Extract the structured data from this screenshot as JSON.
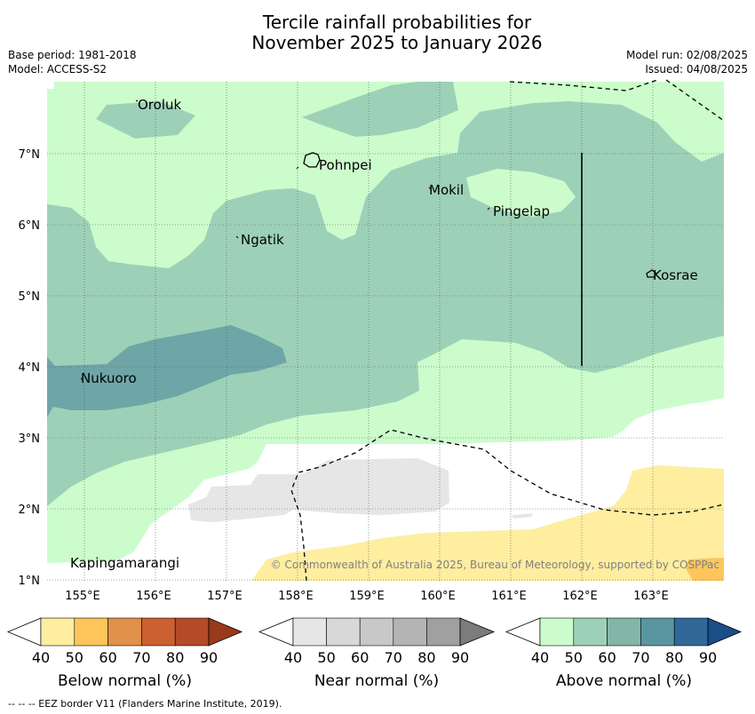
{
  "header": {
    "title_line1": "Tercile rainfall probabilities for",
    "title_line2": "November 2025 to January 2026",
    "base_period": "Base period: 1981-2018",
    "model": "Model: ACCESS-S2",
    "model_run": "Model run: 02/08/2025",
    "issued": "Issued: 04/08/2025"
  },
  "map": {
    "lon_ticks": [
      "155°E",
      "156°E",
      "157°E",
      "158°E",
      "159°E",
      "160°E",
      "161°E",
      "162°E",
      "163°E"
    ],
    "lat_ticks": [
      "1°N",
      "2°N",
      "3°N",
      "4°N",
      "5°N",
      "6°N",
      "7°N"
    ],
    "places": [
      {
        "name": "Oroluk",
        "lon": 155.75,
        "lat": 7.7
      },
      {
        "name": "Pohnpei",
        "lon": 158.3,
        "lat": 6.85
      },
      {
        "name": "Mokil",
        "lon": 159.85,
        "lat": 6.5
      },
      {
        "name": "Pingelap",
        "lon": 160.75,
        "lat": 6.2
      },
      {
        "name": "Ngatik",
        "lon": 157.2,
        "lat": 5.8
      },
      {
        "name": "Kosrae",
        "lon": 163.0,
        "lat": 5.3
      },
      {
        "name": "Nukuoro",
        "lon": 154.95,
        "lat": 3.85
      },
      {
        "name": "Kapingamarangi",
        "lon": 154.8,
        "lat": 1.25
      }
    ],
    "copyright": "© Commonwealth of Australia 2025, Bureau of Meteorology, supported by COSPPac"
  },
  "colorbars": [
    {
      "title": "Below normal (%)",
      "labels": [
        "40",
        "50",
        "60",
        "70",
        "80",
        "90"
      ],
      "colors": [
        "#ffffff",
        "#ffeda0",
        "#fec65a",
        "#e0914a",
        "#cc6030",
        "#b44a28",
        "#9a3a1c"
      ]
    },
    {
      "title": "Near normal (%)",
      "labels": [
        "40",
        "50",
        "60",
        "70",
        "80",
        "90"
      ],
      "colors": [
        "#ffffff",
        "#e6e6e6",
        "#d8d8d8",
        "#c8c8c8",
        "#b4b4b4",
        "#a0a0a0",
        "#7c7c7c"
      ]
    },
    {
      "title": "Above normal (%)",
      "labels": [
        "40",
        "50",
        "60",
        "70",
        "80",
        "90"
      ],
      "colors": [
        "#ffffff",
        "#ccfccc",
        "#9dd1b7",
        "#84b6a8",
        "#5a96a2",
        "#306898",
        "#1a4e88"
      ]
    }
  ],
  "footnote": "--  --  -- EEZ border V11 (Flanders Marine Institute, 2019)."
}
